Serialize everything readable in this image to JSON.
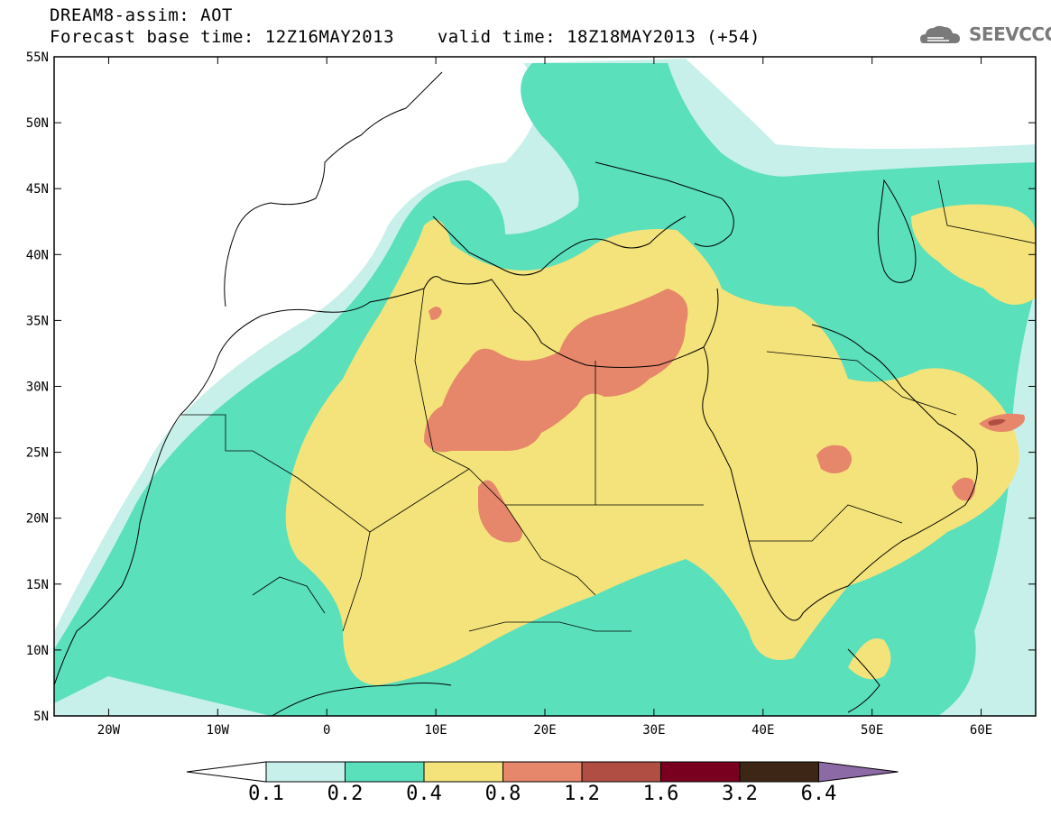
{
  "header": {
    "title": "DREAM8-assim: AOT",
    "base_label": "Forecast base time: 12Z16MAY2013",
    "valid_label": "valid time: 18Z18MAY2013 (+54)",
    "logo_text": "SEEVCCC"
  },
  "map": {
    "lon_range": [
      -25,
      65
    ],
    "lat_range": [
      5,
      55
    ],
    "lat_ticks": [
      "55N",
      "50N",
      "45N",
      "40N",
      "35N",
      "30N",
      "25N",
      "20N",
      "15N",
      "10N",
      "5N"
    ],
    "lon_ticks": [
      "20W",
      "10W",
      "0",
      "10E",
      "20E",
      "30E",
      "40E",
      "50E",
      "60E"
    ]
  },
  "colorbar": {
    "labels": [
      "0.1",
      "0.2",
      "0.4",
      "0.8",
      "1.2",
      "1.6",
      "3.2",
      "6.4"
    ],
    "colors": [
      "#c8f0ea",
      "#5ae0bb",
      "#f4e37a",
      "#e6866a",
      "#b04e43",
      "#7a0020",
      "#3d2616",
      "#8c6aa6"
    ]
  }
}
